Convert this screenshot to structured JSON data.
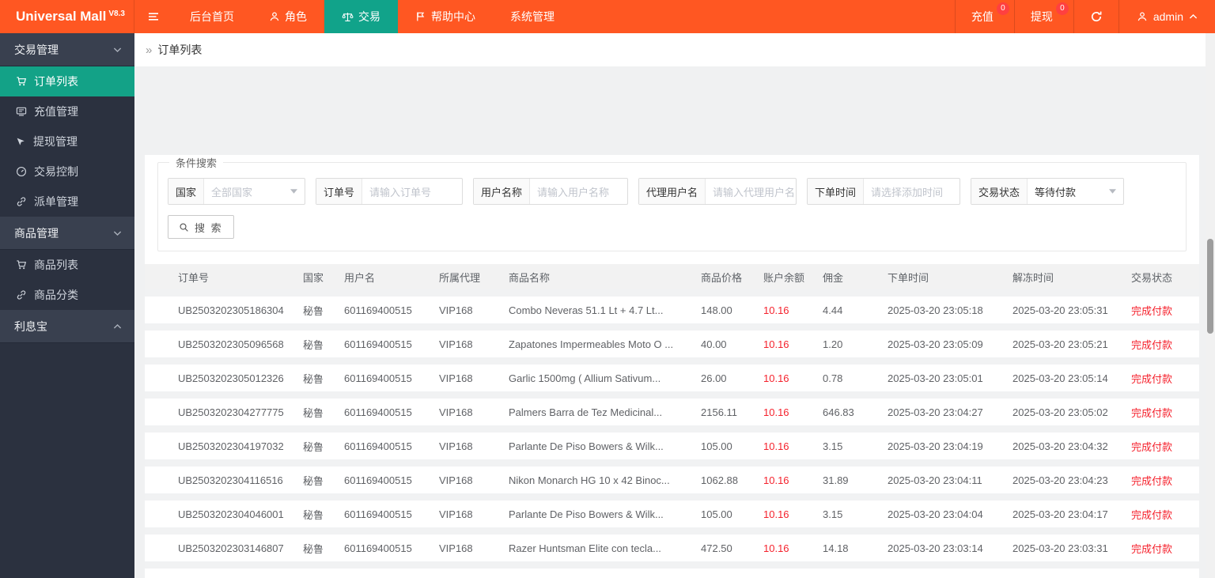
{
  "brand": {
    "name": "Universal Mall",
    "version": "V8.3"
  },
  "topnav": {
    "items": [
      {
        "label": "后台首页",
        "icon": null,
        "active": false
      },
      {
        "label": "角色",
        "icon": "person-icon",
        "active": false
      },
      {
        "label": "交易",
        "icon": "scales-icon",
        "active": true
      },
      {
        "label": "帮助中心",
        "icon": "flag-icon",
        "active": false
      },
      {
        "label": "系统管理",
        "icon": null,
        "active": false
      }
    ],
    "right": {
      "recharge": {
        "label": "充值",
        "badge": "0"
      },
      "withdraw": {
        "label": "提现",
        "badge": "0"
      },
      "user": {
        "name": "admin"
      }
    }
  },
  "sidebar": {
    "sections": [
      {
        "label": "交易管理",
        "state": "expanded",
        "items": [
          {
            "label": "订单列表",
            "icon": "cart-icon",
            "active": true
          },
          {
            "label": "充值管理",
            "icon": "recharge-icon",
            "active": false
          },
          {
            "label": "提现管理",
            "icon": "withdraw-icon",
            "active": false
          },
          {
            "label": "交易控制",
            "icon": "control-icon",
            "active": false
          },
          {
            "label": "派单管理",
            "icon": "link-icon",
            "active": false
          }
        ]
      },
      {
        "label": "商品管理",
        "state": "expanded",
        "items": [
          {
            "label": "商品列表",
            "icon": "cart-icon",
            "active": false
          },
          {
            "label": "商品分类",
            "icon": "link-icon",
            "active": false
          }
        ]
      },
      {
        "label": "利息宝",
        "state": "collapsed",
        "items": []
      }
    ]
  },
  "breadcrumb": {
    "prefix": "»",
    "title": "订单列表"
  },
  "filters": {
    "legend": "条件搜索",
    "fields": [
      {
        "label": "国家",
        "type": "select",
        "value": "全部国家",
        "is_placeholder": true
      },
      {
        "label": "订单号",
        "type": "input",
        "placeholder": "请输入订单号"
      },
      {
        "label": "用户名称",
        "type": "input",
        "placeholder": "请输入用户名称"
      },
      {
        "label": "代理用户名",
        "type": "input",
        "placeholder": "请输入代理用户名"
      },
      {
        "label": "下单时间",
        "type": "input",
        "placeholder": "请选择添加时间"
      },
      {
        "label": "交易状态",
        "type": "select",
        "value": "等待付款",
        "is_placeholder": false
      }
    ],
    "search_button": "搜 索"
  },
  "table": {
    "columns": [
      "订单号",
      "国家",
      "用户名",
      "所属代理",
      "商品名称",
      "商品价格",
      "账户余额",
      "佣金",
      "下单时间",
      "解冻时间",
      "交易状态"
    ],
    "red_columns": [
      6,
      10
    ],
    "rows": [
      [
        "UB2503202305186304",
        "秘鲁",
        "601169400515",
        "VIP168",
        "Combo Neveras 51.1 Lt + 4.7 Lt...",
        "148.00",
        "10.16",
        "4.44",
        "2025-03-20 23:05:18",
        "2025-03-20 23:05:31",
        "完成付款"
      ],
      [
        "UB2503202305096568",
        "秘鲁",
        "601169400515",
        "VIP168",
        "Zapatones Impermeables Moto O ...",
        "40.00",
        "10.16",
        "1.20",
        "2025-03-20 23:05:09",
        "2025-03-20 23:05:21",
        "完成付款"
      ],
      [
        "UB2503202305012326",
        "秘鲁",
        "601169400515",
        "VIP168",
        "Garlic 1500mg ( Allium Sativum...",
        "26.00",
        "10.16",
        "0.78",
        "2025-03-20 23:05:01",
        "2025-03-20 23:05:14",
        "完成付款"
      ],
      [
        "UB2503202304277775",
        "秘鲁",
        "601169400515",
        "VIP168",
        "Palmers Barra de Tez Medicinal...",
        "2156.11",
        "10.16",
        "646.83",
        "2025-03-20 23:04:27",
        "2025-03-20 23:05:02",
        "完成付款"
      ],
      [
        "UB2503202304197032",
        "秘鲁",
        "601169400515",
        "VIP168",
        "Parlante De Piso Bowers & Wilk...",
        "105.00",
        "10.16",
        "3.15",
        "2025-03-20 23:04:19",
        "2025-03-20 23:04:32",
        "完成付款"
      ],
      [
        "UB2503202304116516",
        "秘鲁",
        "601169400515",
        "VIP168",
        "Nikon Monarch HG 10 x 42 Binoc...",
        "1062.88",
        "10.16",
        "31.89",
        "2025-03-20 23:04:11",
        "2025-03-20 23:04:23",
        "完成付款"
      ],
      [
        "UB2503202304046001",
        "秘鲁",
        "601169400515",
        "VIP168",
        "Parlante De Piso Bowers & Wilk...",
        "105.00",
        "10.16",
        "3.15",
        "2025-03-20 23:04:04",
        "2025-03-20 23:04:17",
        "完成付款"
      ],
      [
        "UB2503202303146807",
        "秘鲁",
        "601169400515",
        "VIP168",
        "Razer Huntsman Elite con tecla...",
        "472.50",
        "10.16",
        "14.18",
        "2025-03-20 23:03:14",
        "2025-03-20 23:03:31",
        "完成付款"
      ]
    ]
  },
  "colors": {
    "accent_orange": "#ff5722",
    "accent_teal": "#13a287",
    "danger_red": "#f5222d",
    "badge_red": "#ff4040",
    "sidebar_dark": "#2b313f"
  }
}
